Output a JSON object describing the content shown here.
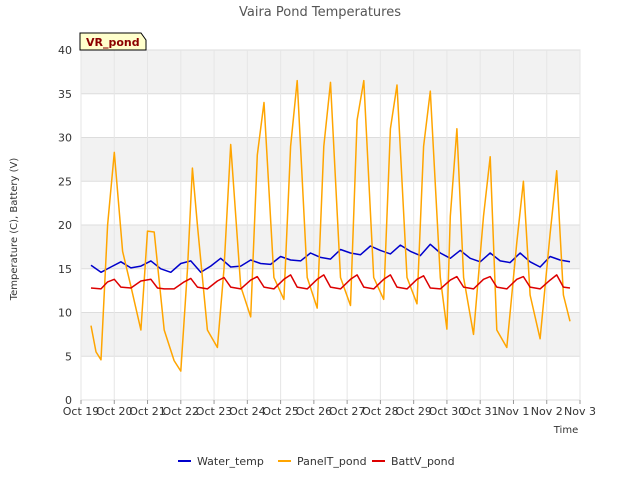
{
  "chart_data": {
    "type": "line",
    "title": "Vaira Pond Temperatures",
    "xlabel": "Time",
    "ylabel": "Temperature (C), Battery (V)",
    "station_label": "VR_pond",
    "ylim": [
      0,
      40
    ],
    "xlim": [
      0,
      15
    ],
    "y_ticks": [
      0,
      5,
      10,
      15,
      20,
      25,
      30,
      35,
      40
    ],
    "x_ticks": [
      0,
      1,
      2,
      3,
      4,
      5,
      6,
      7,
      8,
      9,
      10,
      11,
      12,
      13,
      14,
      15
    ],
    "x_tick_labels": [
      "Oct 19",
      "Oct 20",
      "Oct 21",
      "Oct 22",
      "Oct 23",
      "Oct 24",
      "Oct 25",
      "Oct 26",
      "Oct 27",
      "Oct 28",
      "Oct 29",
      "Oct 30",
      "Oct 31",
      "Nov 1",
      "Nov 2",
      "Nov 3"
    ],
    "grid": true,
    "legend_position": "bottom",
    "series": [
      {
        "name": "Water_temp",
        "color": "#0000cc",
        "x": [
          0.3,
          0.6,
          0.9,
          1.2,
          1.5,
          1.8,
          2.1,
          2.4,
          2.7,
          3.0,
          3.3,
          3.6,
          3.9,
          4.2,
          4.5,
          4.8,
          5.1,
          5.4,
          5.7,
          6.0,
          6.3,
          6.6,
          6.9,
          7.2,
          7.5,
          7.8,
          8.1,
          8.4,
          8.7,
          9.0,
          9.3,
          9.6,
          9.9,
          10.2,
          10.5,
          10.8,
          11.1,
          11.4,
          11.7,
          12.0,
          12.3,
          12.6,
          12.9,
          13.2,
          13.5,
          13.8,
          14.1,
          14.4,
          14.7
        ],
        "y": [
          15.4,
          14.6,
          15.2,
          15.8,
          15.1,
          15.3,
          15.9,
          15.0,
          14.6,
          15.6,
          15.9,
          14.6,
          15.3,
          16.2,
          15.2,
          15.3,
          16.0,
          15.6,
          15.5,
          16.4,
          16.0,
          15.9,
          16.8,
          16.3,
          16.1,
          17.2,
          16.8,
          16.6,
          17.6,
          17.1,
          16.7,
          17.7,
          17.0,
          16.5,
          17.8,
          16.8,
          16.2,
          17.1,
          16.2,
          15.8,
          16.8,
          15.9,
          15.7,
          16.8,
          15.8,
          15.2,
          16.4,
          16.0,
          15.8
        ]
      },
      {
        "name": "PanelT_pond",
        "color": "#ffa500",
        "x": [
          0.3,
          0.45,
          0.6,
          0.8,
          1.0,
          1.25,
          1.5,
          1.8,
          2.0,
          2.2,
          2.5,
          2.8,
          3.0,
          3.2,
          3.35,
          3.5,
          3.8,
          4.1,
          4.3,
          4.5,
          4.8,
          5.1,
          5.3,
          5.5,
          5.8,
          6.1,
          6.3,
          6.5,
          6.8,
          7.1,
          7.3,
          7.5,
          7.8,
          8.1,
          8.3,
          8.5,
          8.8,
          9.1,
          9.3,
          9.5,
          9.8,
          10.1,
          10.3,
          10.5,
          10.8,
          11.0,
          11.1,
          11.3,
          11.5,
          11.8,
          12.1,
          12.3,
          12.5,
          12.8,
          13.1,
          13.3,
          13.5,
          13.8,
          14.1,
          14.3,
          14.5,
          14.7
        ],
        "y": [
          8.5,
          5.5,
          4.6,
          20.0,
          28.3,
          17.0,
          13.0,
          8.0,
          19.3,
          19.2,
          8.0,
          4.5,
          3.3,
          15.0,
          26.5,
          20.0,
          8.0,
          6.0,
          15.0,
          29.2,
          13.0,
          9.5,
          28.0,
          34.0,
          14.0,
          11.5,
          29.0,
          36.5,
          14.0,
          10.5,
          29.0,
          36.3,
          14.0,
          10.8,
          32.0,
          36.5,
          14.0,
          11.5,
          31.0,
          36.0,
          14.0,
          11.0,
          29.0,
          35.3,
          14.0,
          8.1,
          21.0,
          31.0,
          14.0,
          7.5,
          21.0,
          27.8,
          8.0,
          6.0,
          18.0,
          25.0,
          12.0,
          7.0,
          19.0,
          26.2,
          12.0,
          9.0
        ]
      },
      {
        "name": "BattV_pond",
        "color": "#dd0000",
        "x": [
          0.3,
          0.6,
          0.8,
          1.0,
          1.2,
          1.5,
          1.8,
          2.1,
          2.3,
          2.5,
          2.8,
          3.1,
          3.3,
          3.5,
          3.8,
          4.1,
          4.3,
          4.5,
          4.8,
          5.1,
          5.3,
          5.5,
          5.8,
          6.1,
          6.3,
          6.5,
          6.8,
          7.1,
          7.3,
          7.5,
          7.8,
          8.1,
          8.3,
          8.5,
          8.8,
          9.1,
          9.3,
          9.5,
          9.8,
          10.1,
          10.3,
          10.5,
          10.8,
          11.1,
          11.3,
          11.5,
          11.8,
          12.1,
          12.3,
          12.5,
          12.8,
          13.1,
          13.3,
          13.5,
          13.8,
          14.1,
          14.3,
          14.5,
          14.7
        ],
        "y": [
          12.8,
          12.7,
          13.5,
          13.8,
          12.9,
          12.8,
          13.6,
          13.8,
          12.8,
          12.7,
          12.7,
          13.5,
          13.9,
          12.9,
          12.7,
          13.6,
          14.0,
          12.9,
          12.7,
          13.7,
          14.1,
          12.9,
          12.7,
          13.8,
          14.3,
          12.9,
          12.7,
          13.8,
          14.3,
          12.9,
          12.7,
          13.8,
          14.3,
          12.9,
          12.7,
          13.8,
          14.3,
          12.9,
          12.7,
          13.8,
          14.2,
          12.8,
          12.7,
          13.7,
          14.1,
          12.9,
          12.7,
          13.8,
          14.1,
          12.9,
          12.7,
          13.8,
          14.1,
          12.9,
          12.7,
          13.7,
          14.3,
          12.9,
          12.8
        ]
      }
    ]
  }
}
